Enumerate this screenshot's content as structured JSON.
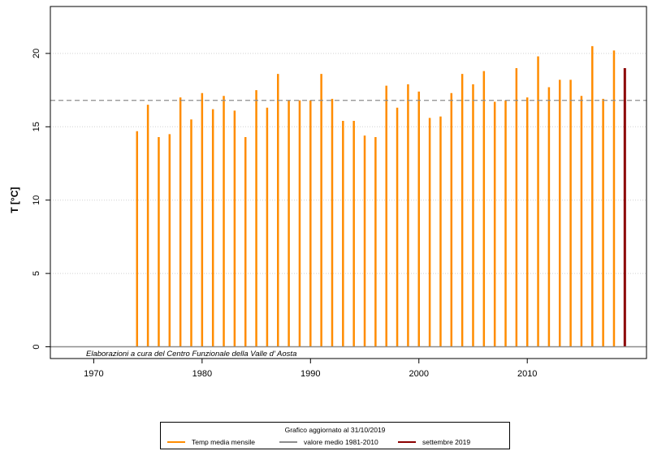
{
  "chart_data": {
    "type": "bar",
    "ylabel": "T [°C]",
    "ylim": [
      -0.8,
      23.2
    ],
    "xlim": [
      1966,
      2021
    ],
    "x_ticks": [
      1970,
      1980,
      1990,
      2000,
      2010
    ],
    "y_ticks": [
      0,
      5,
      10,
      15,
      20
    ],
    "grid": "horizontal dotted",
    "x": [
      1974,
      1975,
      1976,
      1977,
      1978,
      1979,
      1980,
      1981,
      1982,
      1983,
      1984,
      1985,
      1986,
      1987,
      1988,
      1989,
      1990,
      1991,
      1992,
      1993,
      1994,
      1995,
      1996,
      1997,
      1998,
      1999,
      2000,
      2001,
      2002,
      2003,
      2004,
      2005,
      2006,
      2007,
      2008,
      2009,
      2010,
      2011,
      2012,
      2013,
      2014,
      2015,
      2016,
      2017,
      2018
    ],
    "values": [
      14.7,
      16.5,
      14.3,
      14.5,
      17.0,
      15.5,
      17.3,
      16.2,
      17.1,
      16.1,
      14.3,
      17.5,
      16.3,
      18.6,
      16.8,
      16.8,
      16.8,
      18.6,
      16.9,
      15.4,
      15.4,
      14.4,
      14.3,
      17.8,
      16.3,
      17.9,
      17.4,
      15.6,
      15.7,
      17.3,
      18.6,
      17.9,
      18.8,
      16.7,
      16.8,
      19.0,
      17.0,
      19.8,
      17.7,
      18.2,
      18.2,
      17.1,
      20.5,
      16.9,
      20.2
    ],
    "highlight": {
      "x": 2019,
      "value": 19.0
    },
    "reference_mean": 16.8,
    "colors": {
      "bars": "#ff8c00",
      "mean": "#8c8c8c",
      "highlight": "#8b0000"
    },
    "legend": {
      "title": "Grafico aggiornato al 31/10/2019",
      "entries": [
        "Temp media mensile",
        "valore medio 1981-2010",
        "settembre 2019"
      ]
    },
    "annotation": "Elaborazioni a cura del Centro Funzionale della Valle d' Aosta"
  }
}
